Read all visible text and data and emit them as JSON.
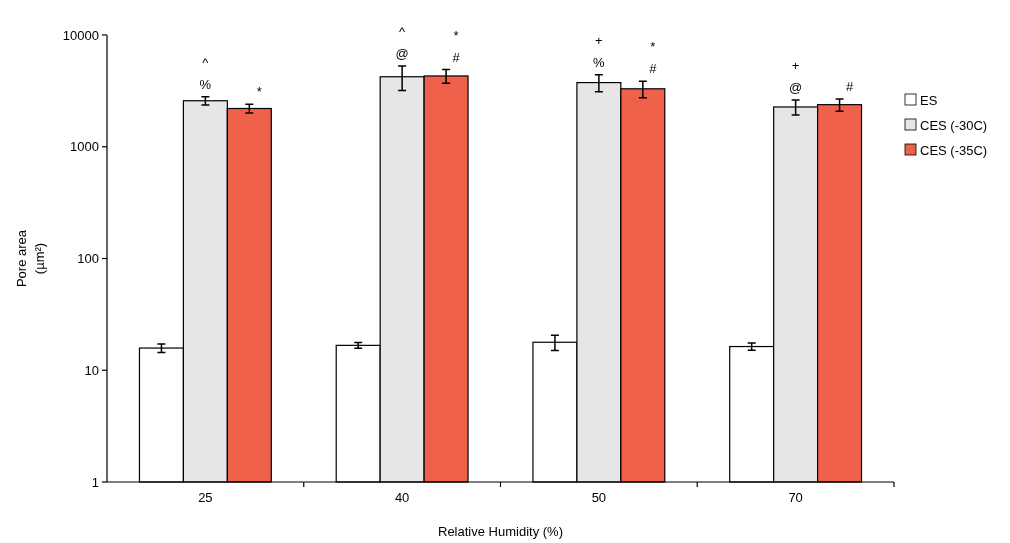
{
  "chart_data": {
    "type": "bar",
    "xlabel": "Relative Humidity (%)",
    "ylabel": "Pore area\n(µm²)",
    "categories": [
      "25",
      "40",
      "50",
      "70"
    ],
    "series": [
      {
        "name": "ES",
        "color": "#ffffff",
        "values": [
          15.8,
          16.7,
          17.8,
          16.3
        ],
        "errors": [
          1.4,
          1.0,
          2.8,
          1.2
        ]
      },
      {
        "name": "CES (-30C)",
        "color": "#e6e6e6",
        "values": [
          2580,
          4230,
          3750,
          2270
        ],
        "errors": [
          220,
          1050,
          650,
          350
        ],
        "value_labels": [
          "^\n%",
          "^\n@",
          "+\n%",
          "+\n@"
        ]
      },
      {
        "name": "CES (-35C)",
        "color": "#f0614c",
        "values": [
          2200,
          4300,
          3300,
          2380
        ],
        "errors": [
          200,
          600,
          550,
          300
        ],
        "value_labels": [
          "*",
          "*\n#",
          "*\n#",
          "#"
        ]
      }
    ],
    "ylim": [
      1,
      10000
    ],
    "yticks": [
      1,
      10,
      100,
      1000,
      10000
    ],
    "log": true,
    "legend": "right"
  }
}
